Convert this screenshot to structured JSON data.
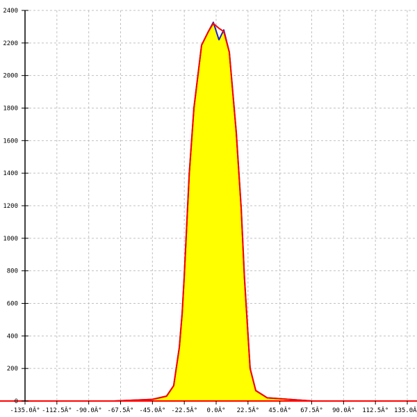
{
  "chart_data": {
    "type": "area",
    "title": "",
    "xlabel": "",
    "ylabel": "",
    "xlim": [
      -135,
      135
    ],
    "ylim": [
      0,
      2400
    ],
    "grid": true,
    "x_tick_labels": [
      "-135.0Â°",
      "-112.5Â°",
      "-90.0Â°",
      "-67.5Â°",
      "-45.0Â°",
      "-22.5Â°",
      "0.0Â°",
      "22.5Â°",
      "45.0Â°",
      "67.5Â°",
      "90.0Â°",
      "112.5Â°",
      "135.0Â°"
    ],
    "x_ticks": [
      -135,
      -112.5,
      -90,
      -67.5,
      -45,
      -22.5,
      0,
      22.5,
      45,
      67.5,
      90,
      112.5,
      135
    ],
    "y_ticks": [
      0,
      200,
      400,
      600,
      800,
      1000,
      1200,
      1400,
      1600,
      1800,
      2000,
      2200,
      2400
    ],
    "series": [
      {
        "color": "#2020c0",
        "fill": "#ffff00",
        "x": [
          -72,
          -45,
          -35,
          -30,
          -26,
          -24,
          -22.6,
          -19,
          -15.7,
          -10.3,
          -5.4,
          -2,
          2,
          5.4,
          9.3,
          14.2,
          17.7,
          20,
          24,
          28,
          36,
          68
        ],
        "y": [
          0,
          10,
          30,
          94,
          330,
          540,
          756,
          1396,
          1800,
          2186,
          2272,
          2327,
          2220,
          2280,
          2144,
          1652,
          1183,
          756,
          200,
          64,
          20,
          0
        ]
      },
      {
        "color": "#ff0000",
        "x": [
          -135,
          -72,
          -45,
          -35,
          -30,
          -26,
          -24,
          -22.6,
          -19,
          -15.7,
          -10.3,
          -5.4,
          -2,
          2,
          5.4,
          9.3,
          14.2,
          17.7,
          20,
          24,
          28,
          36,
          68,
          135
        ],
        "y": [
          0,
          0,
          10,
          30,
          94,
          330,
          540,
          756,
          1396,
          1800,
          2186,
          2272,
          2320,
          2290,
          2270,
          2144,
          1652,
          1183,
          756,
          200,
          64,
          20,
          0,
          0
        ]
      }
    ]
  }
}
